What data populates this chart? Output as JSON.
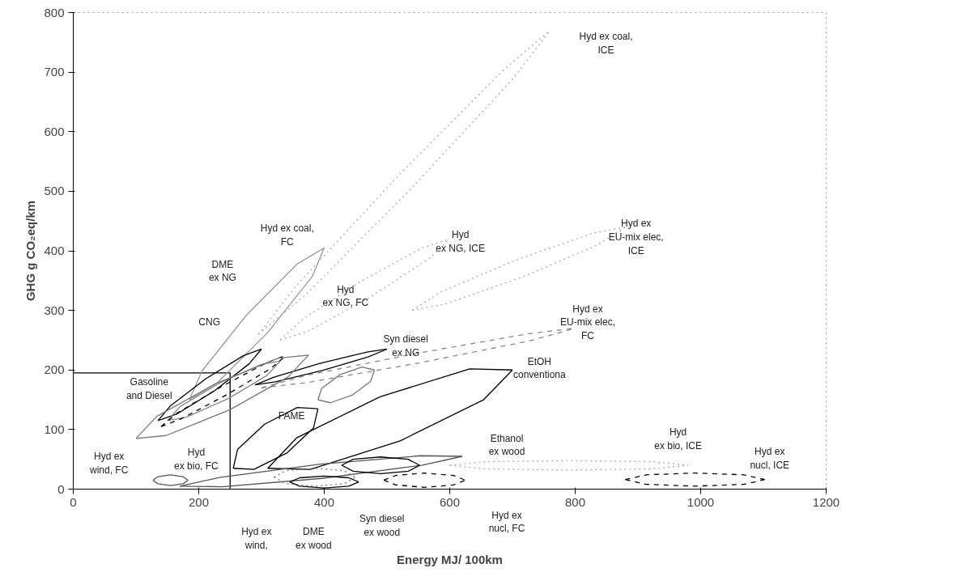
{
  "chart_data": {
    "type": "line",
    "xlabel": "Energy MJ/ 100km",
    "ylabel": "GHG g CO₂eq/km",
    "xlim": [
      0,
      1200
    ],
    "ylim": [
      0,
      800
    ],
    "xticks": [
      0,
      200,
      400,
      600,
      800,
      1000,
      1200
    ],
    "yticks": [
      0,
      100,
      200,
      300,
      400,
      500,
      600,
      700,
      800
    ],
    "grid": false,
    "marker": "none",
    "series": [
      {
        "color": "#000000",
        "line_style": "solid",
        "x": [
          0,
          250,
          250
        ],
        "values": [
          195,
          195,
          0
        ]
      },
      {
        "color": "#aaaaaa",
        "line_style": "dotted",
        "x": [
          295,
          356,
          517,
          684,
          760
        ],
        "values": [
          260,
          342,
          525,
          702,
          770
        ]
      },
      {
        "color": "#aaaaaa",
        "line_style": "dotted",
        "x": [
          295,
          372,
          539,
          700,
          760
        ],
        "values": [
          260,
          328,
          505,
          688,
          770
        ]
      },
      {
        "color": "#999999",
        "line_style": "solid",
        "x": [
          185,
          205,
          276,
          357,
          400
        ],
        "values": [
          150,
          198,
          292,
          378,
          405
        ]
      },
      {
        "color": "#999999",
        "line_style": "solid",
        "x": [
          185,
          229,
          310,
          381,
          400
        ],
        "values": [
          150,
          178,
          263,
          357,
          405
        ]
      },
      {
        "color": "#aaaaaa",
        "line_style": "dotted",
        "x": [
          330,
          364,
          457,
          554,
          600
        ],
        "values": [
          250,
          284,
          348,
          404,
          420
        ]
      },
      {
        "color": "#aaaaaa",
        "line_style": "dotted",
        "x": [
          330,
          376,
          473,
          566,
          600
        ],
        "values": [
          250,
          266,
          322,
          386,
          420
        ]
      },
      {
        "color": "#aaaaaa",
        "line_style": "dotted",
        "x": [
          540,
          586,
          704,
          826,
          880
        ],
        "values": [
          300,
          331,
          384,
          429,
          440
        ]
      },
      {
        "color": "#aaaaaa",
        "line_style": "dotted",
        "x": [
          540,
          594,
          716,
          834,
          880
        ],
        "values": [
          300,
          311,
          356,
          409,
          440
        ]
      },
      {
        "color": "#888888",
        "line_style": "dashed",
        "x": [
          300,
          372,
          548,
          726,
          800
        ],
        "values": [
          170,
          191,
          228,
          261,
          270
        ]
      },
      {
        "color": "#888888",
        "line_style": "dashed",
        "x": [
          300,
          374,
          552,
          728,
          800
        ],
        "values": [
          170,
          179,
          212,
          249,
          270
        ]
      },
      {
        "color": "#000000",
        "line_style": "solid",
        "x": [
          290,
          320,
          393,
          468,
          500
        ],
        "values": [
          175,
          188,
          211,
          230,
          235
        ]
      },
      {
        "color": "#000000",
        "line_style": "solid",
        "x": [
          290,
          322,
          397,
          470,
          500
        ],
        "values": [
          175,
          180,
          199,
          222,
          235
        ]
      },
      {
        "color": "#000000",
        "line_style": "solid",
        "x": [
          135,
          155,
          211,
          271,
          300
        ],
        "values": [
          115,
          140,
          185,
          224,
          235
        ]
      },
      {
        "color": "#000000",
        "line_style": "solid",
        "x": [
          135,
          165,
          225,
          280,
          300
        ],
        "values": [
          115,
          126,
          165,
          210,
          235
        ]
      },
      {
        "color": "#888888",
        "line_style": "solid",
        "x": [
          150,
          171,
          233,
          299,
          330
        ],
        "values": [
          115,
          139,
          178,
          209,
          215
        ]
      },
      {
        "color": "#888888",
        "line_style": "solid",
        "x": [
          150,
          181,
          247,
          309,
          330
        ],
        "values": [
          115,
          121,
          152,
          191,
          215
        ]
      },
      {
        "color": "#000000",
        "line_style": "dashed",
        "x": [
          140,
          166,
          236,
          308,
          340
        ],
        "values": [
          105,
          128,
          172,
          212,
          225
        ]
      },
      {
        "color": "#000000",
        "line_style": "dashed",
        "x": [
          140,
          172,
          244,
          314,
          340
        ],
        "values": [
          105,
          118,
          158,
          202,
          225
        ]
      },
      {
        "color": "#777777",
        "line_style": "solid",
        "x": [
          100,
          133,
          227,
          327,
          375
        ],
        "values": [
          85,
          122,
          177,
          220,
          225
        ]
      },
      {
        "color": "#777777",
        "line_style": "solid",
        "x": [
          100,
          148,
          249,
          342,
          375
        ],
        "values": [
          85,
          90,
          133,
          188,
          225
        ]
      },
      {
        "color": "#000000",
        "line_style": "solid",
        "x": [
          310,
          356,
          489,
          632,
          700
        ],
        "values": [
          35,
          86,
          155,
          202,
          200
        ]
      },
      {
        "color": "#000000",
        "line_style": "solid",
        "x": [
          310,
          378,
          521,
          654,
          700
        ],
        "values": [
          35,
          33,
          81,
          150,
          200
        ]
      },
      {
        "color": "#000000",
        "line_style": "solid",
        "x": [
          255,
          262,
          305,
          357,
          390
        ],
        "values": [
          35,
          67,
          109,
          137,
          135
        ]
      },
      {
        "color": "#000000",
        "line_style": "solid",
        "x": [
          255,
          288,
          341,
          383,
          390
        ],
        "values": [
          35,
          33,
          61,
          103,
          135
        ]
      },
      {
        "color": "#777777",
        "line_style": "solid",
        "x": [
          390,
          396,
          425,
          460,
          480
        ],
        "values": [
          150,
          169,
          192,
          205,
          200
        ]
      },
      {
        "color": "#777777",
        "line_style": "solid",
        "x": [
          390,
          410,
          445,
          474,
          480
        ],
        "values": [
          150,
          145,
          158,
          181,
          200
        ]
      },
      {
        "color": "#555555",
        "line_style": "solid",
        "x": [
          170,
          235,
          394,
          553,
          620
        ],
        "values": [
          5,
          20,
          42,
          56,
          55
        ]
      },
      {
        "color": "#555555",
        "line_style": "solid",
        "x": [
          170,
          237,
          396,
          555,
          620
        ],
        "values": [
          5,
          4,
          18,
          40,
          55
        ]
      },
      {
        "color": "#555555",
        "line_style": "solid",
        "x": [
          127,
          135,
          155,
          175,
          183
        ],
        "values": [
          15,
          21,
          24,
          21,
          15
        ]
      },
      {
        "color": "#555555",
        "line_style": "solid",
        "x": [
          127,
          135,
          155,
          175,
          183
        ],
        "values": [
          15,
          9,
          6,
          9,
          15
        ]
      },
      {
        "color": "#000000",
        "line_style": "solid",
        "x": [
          428,
          446,
          490,
          534,
          552
        ],
        "values": [
          40,
          50,
          54,
          50,
          40
        ]
      },
      {
        "color": "#000000",
        "line_style": "solid",
        "x": [
          428,
          446,
          490,
          534,
          552
        ],
        "values": [
          40,
          30,
          26,
          30,
          40
        ]
      },
      {
        "color": "#aaaaaa",
        "line_style": "dotted",
        "x": [
          600,
          656,
          790,
          924,
          980
        ],
        "values": [
          40,
          46,
          48,
          46,
          40
        ]
      },
      {
        "color": "#aaaaaa",
        "line_style": "dotted",
        "x": [
          600,
          656,
          790,
          924,
          980
        ],
        "values": [
          40,
          34,
          32,
          34,
          40
        ]
      },
      {
        "color": "#000000",
        "line_style": "dashed",
        "x": [
          880,
          913,
          991,
          1069,
          1102
        ],
        "values": [
          16,
          24,
          27,
          24,
          16
        ]
      },
      {
        "color": "#000000",
        "line_style": "dashed",
        "x": [
          880,
          913,
          991,
          1069,
          1102
        ],
        "values": [
          16,
          8,
          5,
          8,
          16
        ]
      },
      {
        "color": "#000000",
        "line_style": "dashed",
        "x": [
          495,
          514,
          560,
          606,
          625
        ],
        "values": [
          15,
          23,
          27,
          23,
          15
        ]
      },
      {
        "color": "#000000",
        "line_style": "dashed",
        "x": [
          495,
          514,
          560,
          606,
          625
        ],
        "values": [
          15,
          7,
          3,
          7,
          15
        ]
      },
      {
        "color": "#777777",
        "line_style": "dotted",
        "x": [
          320,
          339,
          385,
          431,
          450
        ],
        "values": [
          20,
          31,
          35,
          31,
          20
        ]
      },
      {
        "color": "#777777",
        "line_style": "dotted",
        "x": [
          320,
          339,
          385,
          431,
          450
        ],
        "values": [
          20,
          9,
          5,
          9,
          20
        ]
      },
      {
        "color": "#000000",
        "line_style": "solid",
        "x": [
          345,
          361,
          400,
          439,
          455
        ],
        "values": [
          12,
          19,
          22,
          19,
          12
        ]
      },
      {
        "color": "#000000",
        "line_style": "solid",
        "x": [
          345,
          361,
          400,
          439,
          455
        ],
        "values": [
          12,
          5,
          2,
          5,
          12
        ]
      }
    ],
    "annotations": [
      "Hyd ex coal,\nICE",
      "Hyd ex coal,\nFC",
      "DME\nex NG",
      "CNG",
      "Hyd\nex NG, FC",
      "Syn diesel\nex NG",
      "Gasoline\nand Diesel",
      "FAME",
      "Hyd ex\nwind, FC",
      "Hyd\nex bio, FC",
      "Hyd ex\nwind,",
      "DME\nex wood",
      "Syn diesel\nex wood",
      "Ethanol\nex wood",
      "EtOH\nconventiona",
      "Hyd ex\nnucl, FC",
      "Hyd ex\nEU-mix elec,\nFC",
      "Hyd ex\nEU-mix elec,\nICE",
      "Hyd\nex NG, ICE",
      "Hyd\nex bio, ICE",
      "Hyd ex\nnucl, ICE"
    ]
  }
}
